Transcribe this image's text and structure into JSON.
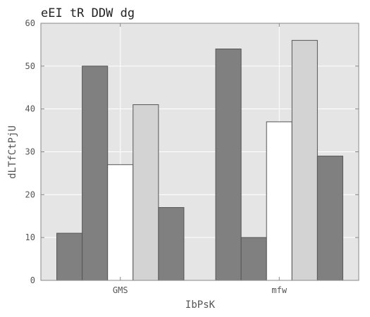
{
  "chart_data": {
    "type": "bar",
    "title": "eEI tR DDW dg",
    "xlabel": "IbPsK",
    "ylabel": "dLTfCtPjU",
    "categories": [
      "GMS",
      "mfw"
    ],
    "series": [
      {
        "values": [
          11,
          54
        ],
        "color": "#808080"
      },
      {
        "values": [
          50,
          10
        ],
        "color": "#808080"
      },
      {
        "values": [
          27,
          37
        ],
        "color": "#ffffff"
      },
      {
        "values": [
          41,
          56
        ],
        "color": "#d3d3d3"
      },
      {
        "values": [
          17,
          29
        ],
        "color": "#808080"
      }
    ],
    "ylim": [
      0,
      60
    ],
    "yticks": [
      0,
      10,
      20,
      30,
      40,
      50,
      60
    ],
    "grid": true,
    "plot_background": "#e5e5e5"
  }
}
